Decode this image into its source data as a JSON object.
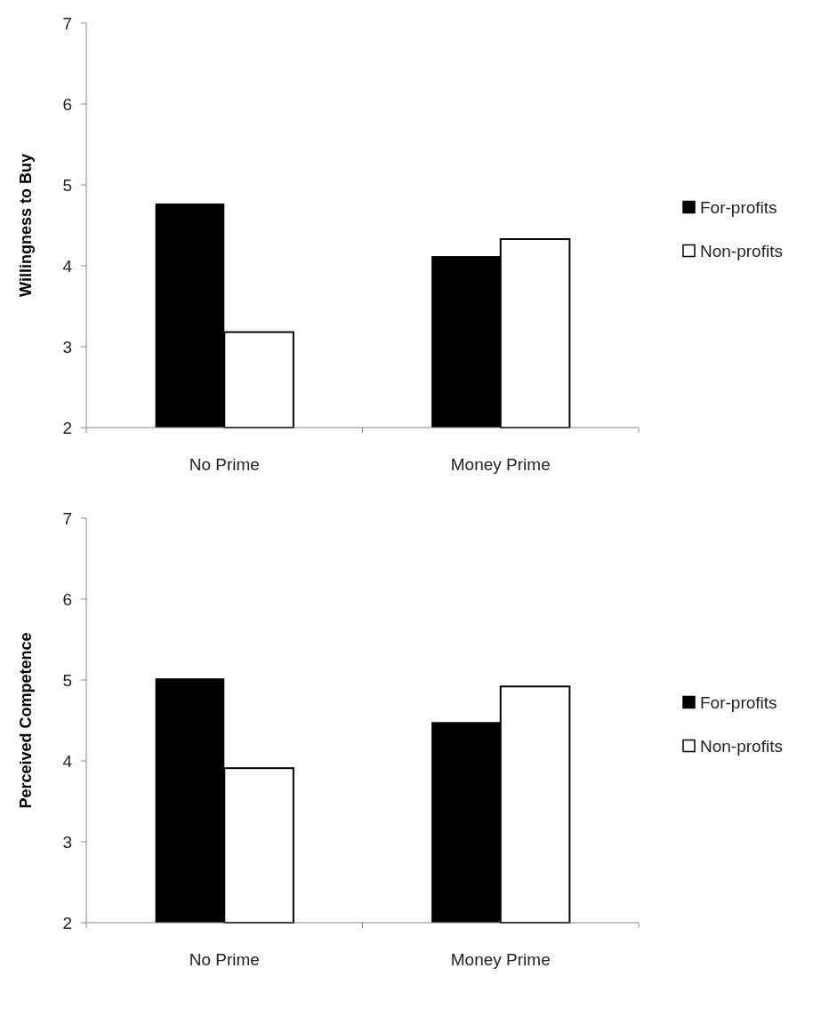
{
  "chart_data": [
    {
      "type": "bar",
      "ylabel": "Willingness to Buy",
      "categories": [
        "No Prime",
        "Money Prime"
      ],
      "series": [
        {
          "name": "For-profits",
          "color": "#000000",
          "values": [
            4.77,
            4.12
          ]
        },
        {
          "name": "Non-profits",
          "color": "#ffffff",
          "values": [
            3.18,
            4.33
          ]
        }
      ],
      "ylim": [
        2,
        7
      ],
      "yticks": [
        2,
        3,
        4,
        5,
        6,
        7
      ],
      "legend": "right"
    },
    {
      "type": "bar",
      "ylabel": "Perceived Competence",
      "categories": [
        "No Prime",
        "Money Prime"
      ],
      "series": [
        {
          "name": "For-profits",
          "color": "#000000",
          "values": [
            5.02,
            4.48
          ]
        },
        {
          "name": "Non-profits",
          "color": "#ffffff",
          "values": [
            3.91,
            4.92
          ]
        }
      ],
      "ylim": [
        2,
        7
      ],
      "yticks": [
        2,
        3,
        4,
        5,
        6,
        7
      ],
      "legend": "right"
    }
  ]
}
